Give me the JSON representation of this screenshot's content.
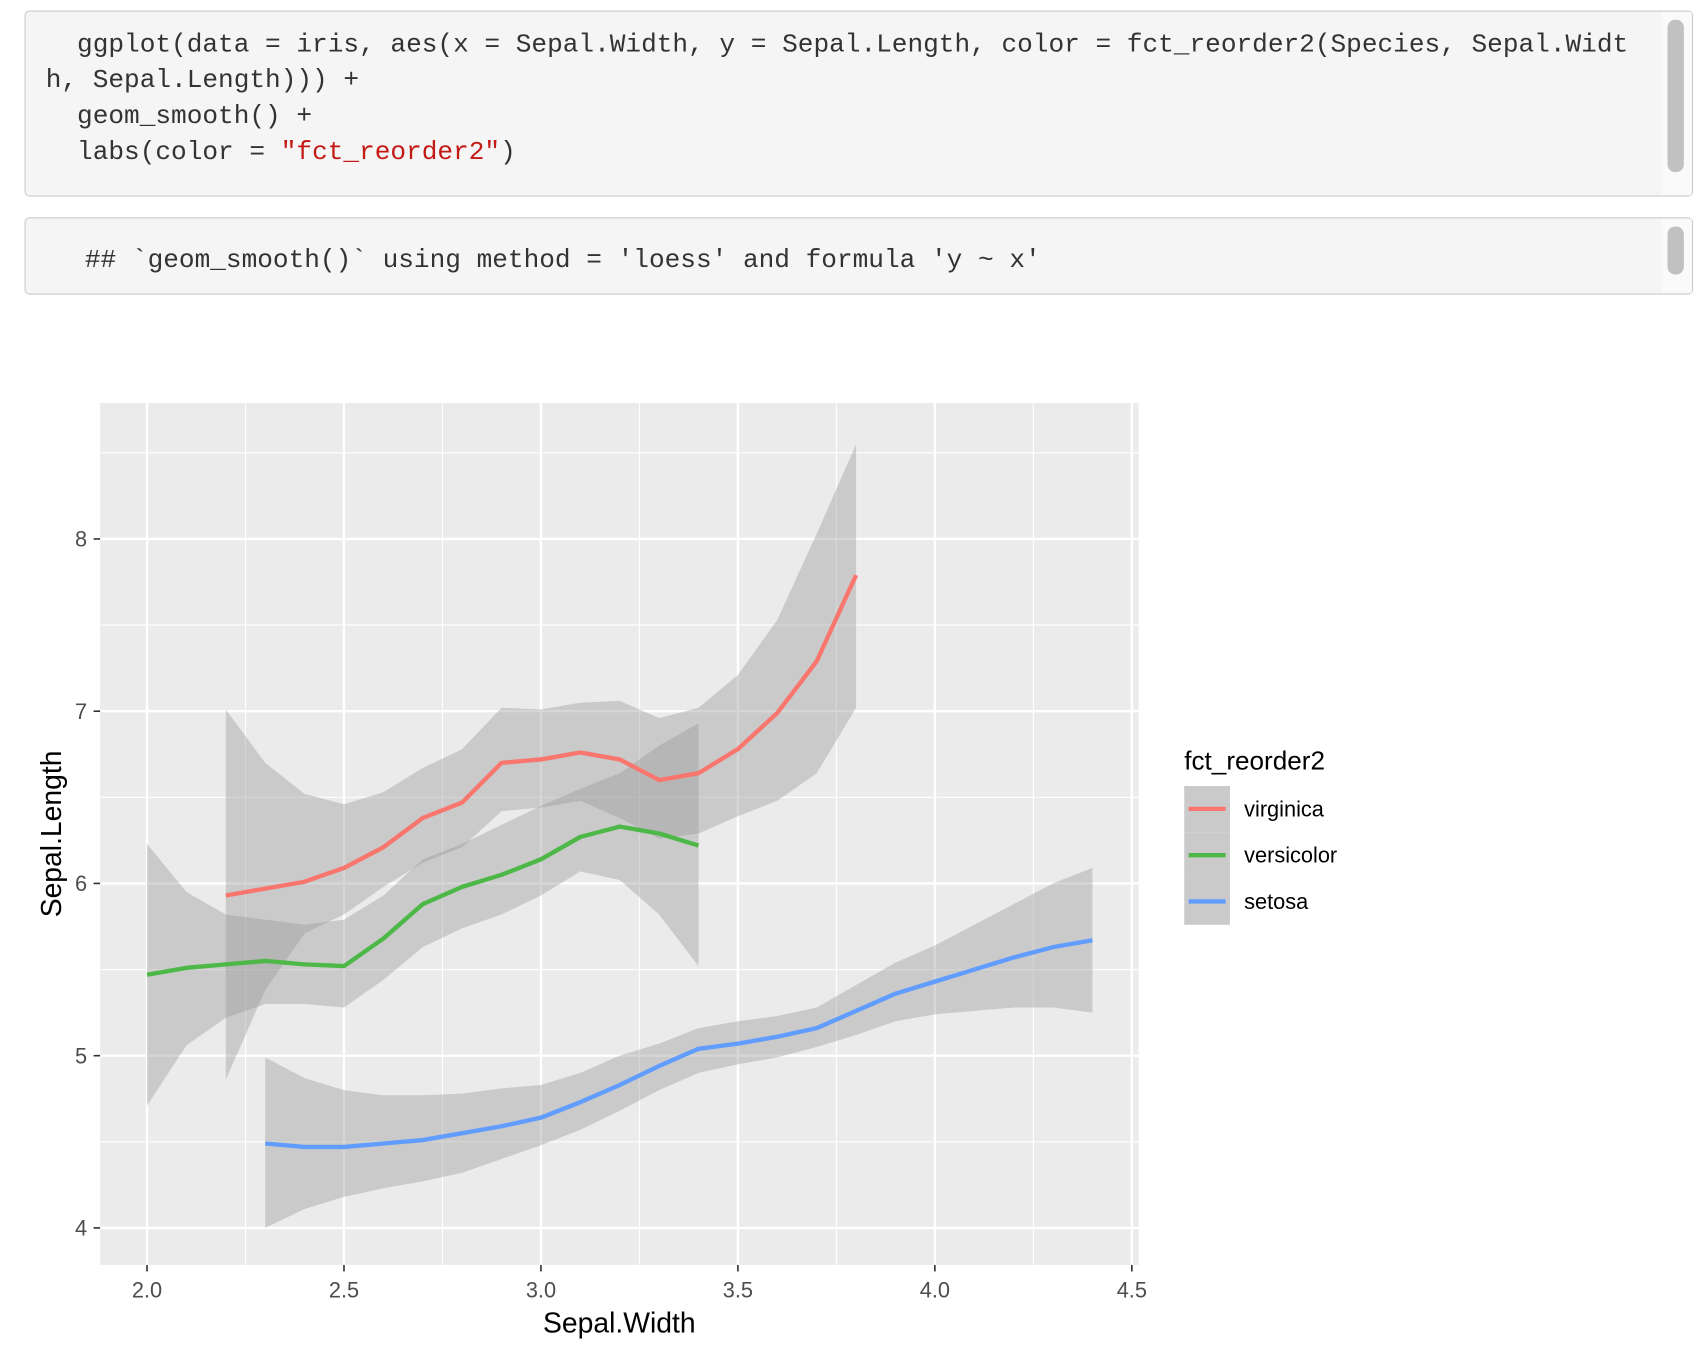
{
  "code": {
    "lines": [
      [
        "  ggplot(data = iris, aes(x = Sepal.Width, y = Sepal.Length, color = fct_reorder2(Species, Sepal.Widt"
      ],
      [
        "h, Sepal.Length))) +"
      ],
      [
        "  geom_smooth() +"
      ],
      [
        "  labs(color = ",
        "\"fct_reorder2\"",
        ")"
      ]
    ]
  },
  "output": "## `geom_smooth()` using method = 'loess' and formula 'y ~ x'",
  "chart_data": {
    "type": "smooth",
    "x_label": "Sepal.Width",
    "y_label": "Sepal.Length",
    "legend_title": "fct_reorder2",
    "legend": "right",
    "grid": true,
    "band_color": "#999999",
    "xlim": [
      1.881,
      4.517
    ],
    "ylim": [
      3.785,
      8.79
    ],
    "xticks": [
      {
        "value": 2,
        "label": "2.0"
      },
      2.5,
      {
        "value": 3,
        "label": "3.0"
      },
      3.5,
      {
        "value": 4,
        "label": "4.0"
      },
      4.5
    ],
    "yticks": [
      4,
      5,
      6,
      7,
      8
    ],
    "series": [
      {
        "name": "virginica",
        "color": "#F8766D",
        "x": [
          2.2,
          2.3,
          2.4,
          2.5,
          2.6,
          2.7,
          2.8,
          2.9,
          3.0,
          3.1,
          3.2,
          3.3,
          3.4,
          3.5,
          3.6,
          3.7,
          3.8
        ],
        "values": [
          5.93,
          5.97,
          6.01,
          6.09,
          6.21,
          6.38,
          6.47,
          6.7,
          6.72,
          6.76,
          6.72,
          6.6,
          6.64,
          6.78,
          6.99,
          7.29,
          7.79
        ],
        "upper": [
          7.01,
          6.7,
          6.52,
          6.46,
          6.53,
          6.67,
          6.78,
          7.02,
          7.01,
          7.05,
          7.06,
          6.96,
          7.02,
          7.21,
          7.53,
          8.03,
          8.55
        ],
        "lower": [
          4.86,
          5.38,
          5.71,
          5.82,
          5.98,
          6.12,
          6.21,
          6.42,
          6.44,
          6.48,
          6.38,
          6.26,
          6.29,
          6.39,
          6.48,
          6.64,
          7.02
        ]
      },
      {
        "name": "versicolor",
        "color": "#4DB848",
        "x": [
          2.0,
          2.1,
          2.2,
          2.3,
          2.4,
          2.5,
          2.6,
          2.7,
          2.8,
          2.9,
          3.0,
          3.1,
          3.2,
          3.3,
          3.4
        ],
        "values": [
          5.47,
          5.51,
          5.53,
          5.55,
          5.53,
          5.52,
          5.68,
          5.88,
          5.98,
          6.05,
          6.14,
          6.27,
          6.33,
          6.29,
          6.22
        ],
        "upper": [
          6.23,
          5.95,
          5.82,
          5.79,
          5.76,
          5.79,
          5.93,
          6.14,
          6.23,
          6.34,
          6.45,
          6.55,
          6.64,
          6.8,
          6.93
        ],
        "lower": [
          4.71,
          5.06,
          5.22,
          5.3,
          5.3,
          5.28,
          5.44,
          5.63,
          5.74,
          5.82,
          5.93,
          6.07,
          6.02,
          5.82,
          5.52
        ]
      },
      {
        "name": "setosa",
        "color": "#619CFF",
        "x": [
          2.3,
          2.4,
          2.5,
          2.6,
          2.7,
          2.8,
          2.9,
          3.0,
          3.1,
          3.2,
          3.3,
          3.4,
          3.5,
          3.6,
          3.7,
          3.8,
          3.9,
          4.0,
          4.1,
          4.2,
          4.3,
          4.4
        ],
        "values": [
          4.49,
          4.47,
          4.47,
          4.49,
          4.51,
          4.55,
          4.59,
          4.64,
          4.73,
          4.83,
          4.94,
          5.04,
          5.07,
          5.11,
          5.16,
          5.26,
          5.36,
          5.43,
          5.5,
          5.57,
          5.63,
          5.67
        ],
        "upper": [
          4.99,
          4.87,
          4.8,
          4.77,
          4.77,
          4.78,
          4.81,
          4.83,
          4.9,
          5.0,
          5.07,
          5.16,
          5.2,
          5.23,
          5.28,
          5.41,
          5.54,
          5.64,
          5.76,
          5.88,
          6.0,
          6.09
        ],
        "lower": [
          4.0,
          4.11,
          4.18,
          4.23,
          4.27,
          4.32,
          4.4,
          4.48,
          4.57,
          4.68,
          4.8,
          4.9,
          4.95,
          4.99,
          5.05,
          5.12,
          5.2,
          5.24,
          5.26,
          5.28,
          5.28,
          5.25
        ]
      }
    ]
  }
}
